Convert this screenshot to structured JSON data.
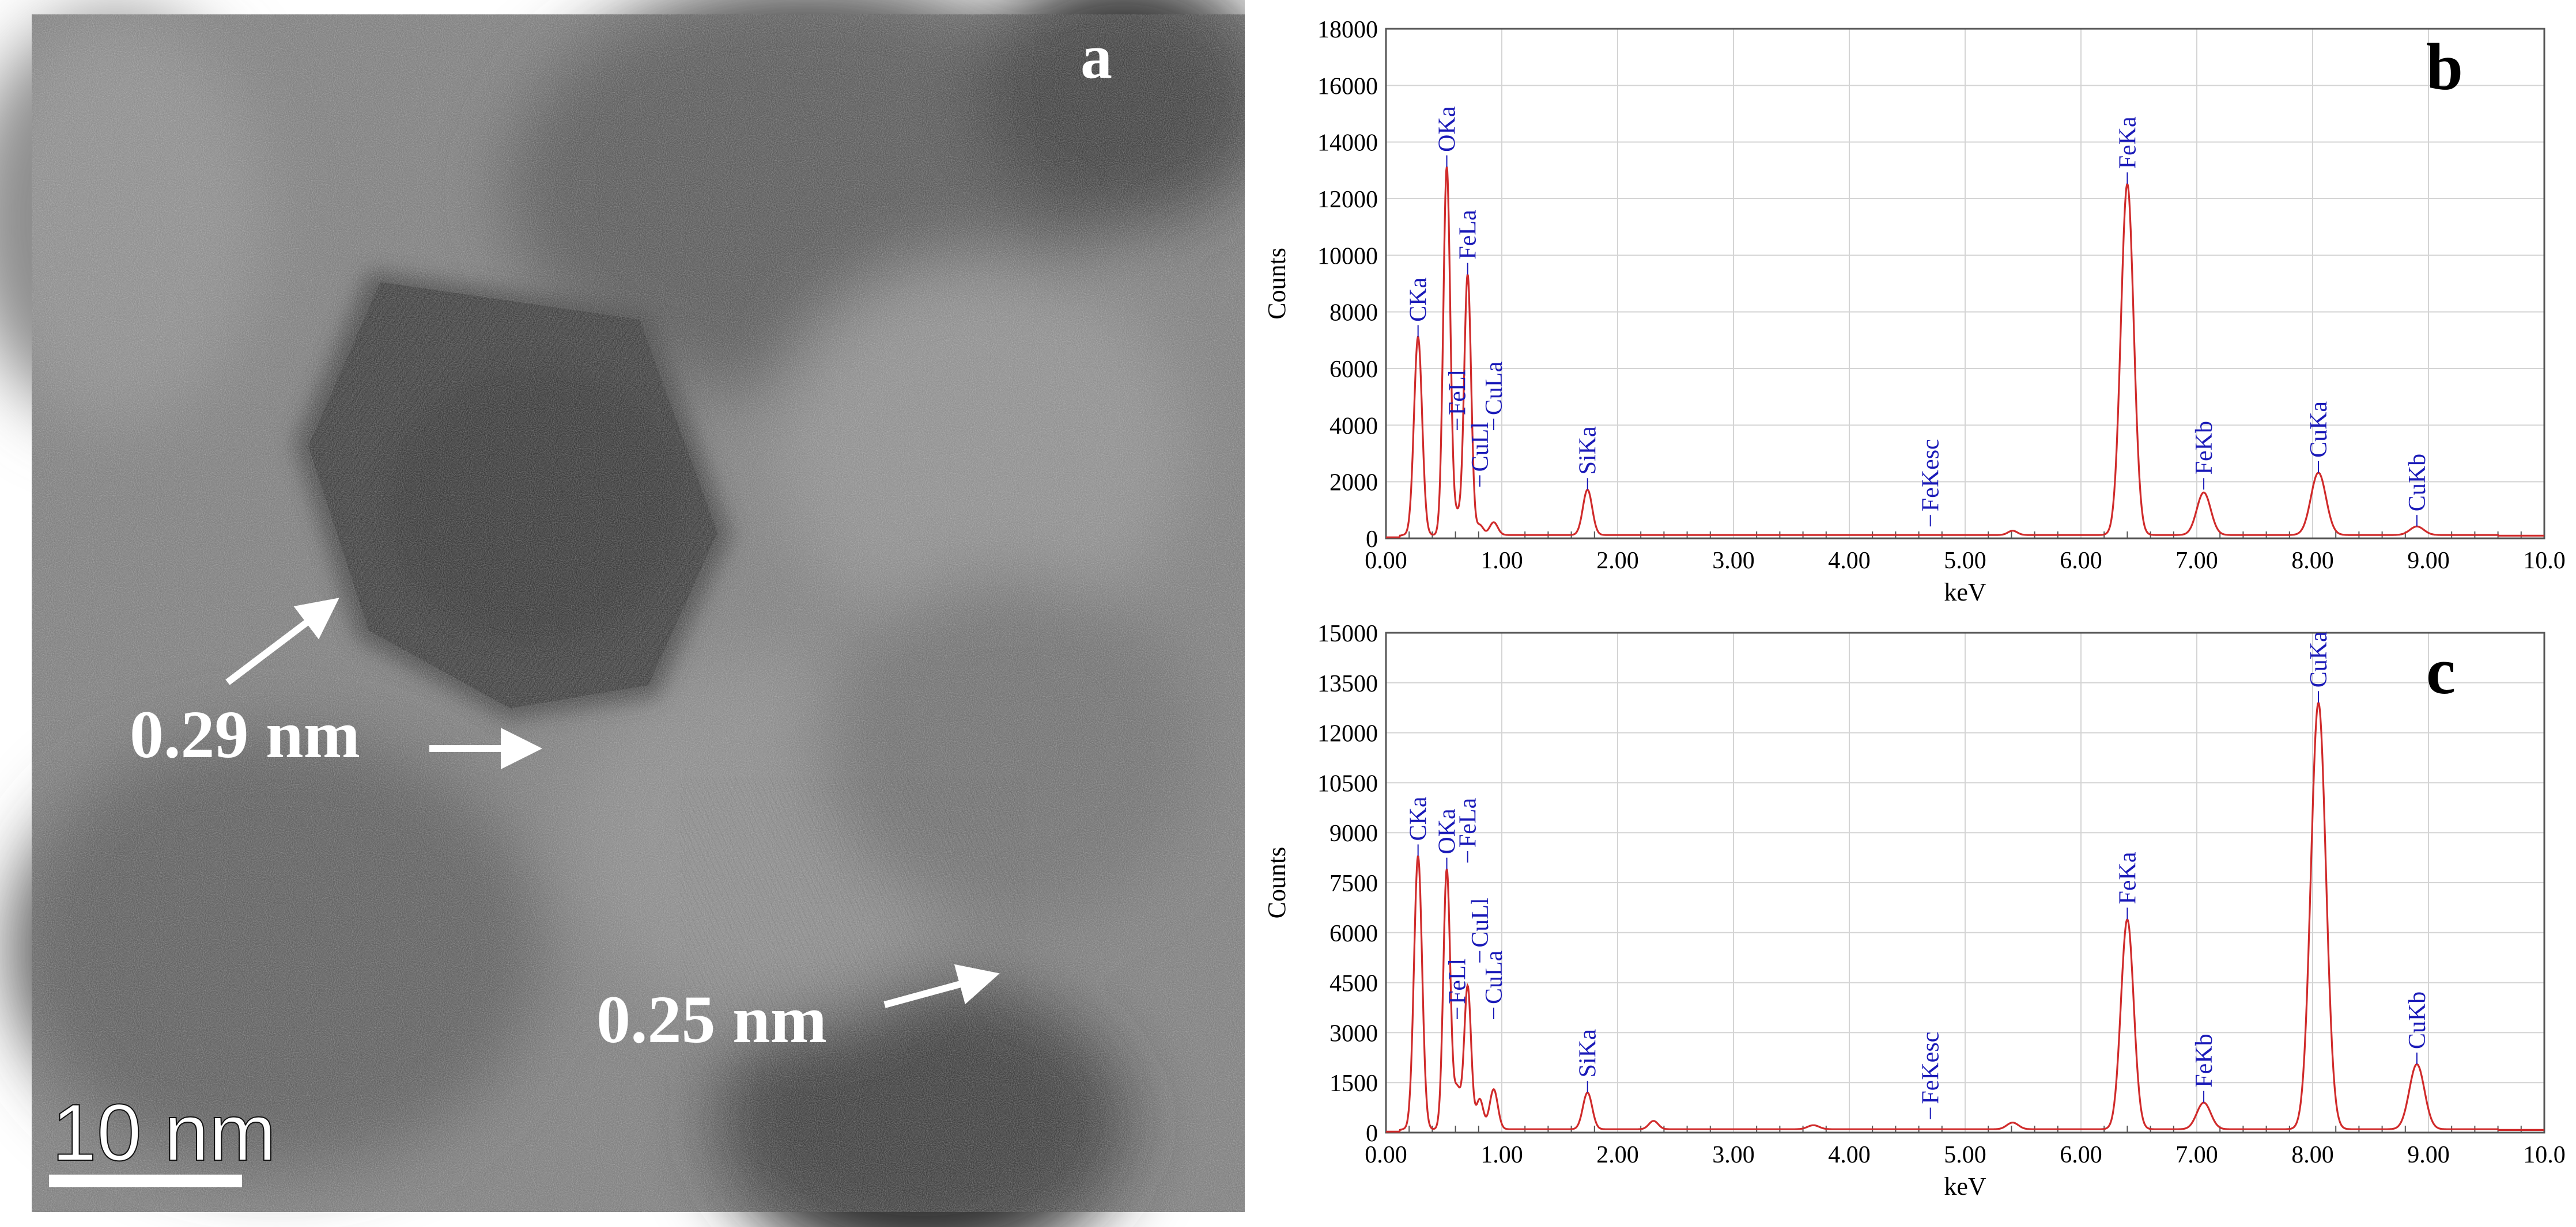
{
  "figure": {
    "panel_a": {
      "label": "a",
      "annotations": [
        "0.29 nm",
        "0.25 nm"
      ],
      "scale_bar": {
        "label": "10 nm"
      }
    }
  },
  "chart_data": [
    {
      "panel_label": "b",
      "type": "line",
      "title": "",
      "xlabel": "keV",
      "ylabel": "Counts",
      "xlim": [
        0,
        10
      ],
      "ylim": [
        0,
        18000
      ],
      "x_ticks": [
        0,
        1,
        2,
        3,
        4,
        5,
        6,
        7,
        8,
        9,
        10
      ],
      "x_tick_labels": [
        "0.00",
        "1.00",
        "2.00",
        "3.00",
        "4.00",
        "5.00",
        "6.00",
        "7.00",
        "8.00",
        "9.00",
        "10.0"
      ],
      "y_ticks": [
        0,
        2000,
        4000,
        6000,
        8000,
        10000,
        12000,
        14000,
        16000,
        18000
      ],
      "grid": true,
      "line_color": "#d02b2b",
      "label_color": "#1a1ab8",
      "baseline": 120,
      "peaks": [
        {
          "x": 0.277,
          "y": 7000,
          "w": 0.035
        },
        {
          "x": 0.525,
          "y": 13000,
          "w": 0.03
        },
        {
          "x": 0.615,
          "y": 700,
          "w": 0.03
        },
        {
          "x": 0.705,
          "y": 9200,
          "w": 0.03
        },
        {
          "x": 0.81,
          "y": 350,
          "w": 0.03
        },
        {
          "x": 0.93,
          "y": 450,
          "w": 0.035
        },
        {
          "x": 1.74,
          "y": 1600,
          "w": 0.04
        },
        {
          "x": 5.41,
          "y": 150,
          "w": 0.04
        },
        {
          "x": 6.4,
          "y": 12400,
          "w": 0.055
        },
        {
          "x": 7.06,
          "y": 1500,
          "w": 0.06
        },
        {
          "x": 8.05,
          "y": 2200,
          "w": 0.065
        },
        {
          "x": 8.9,
          "y": 300,
          "w": 0.06
        }
      ],
      "peak_labels": [
        {
          "text": "CKa",
          "x": 0.277,
          "y": 7000
        },
        {
          "text": "OKa",
          "x": 0.525,
          "y": 13000
        },
        {
          "text": "FeLl",
          "x": 0.615,
          "y": 3700
        },
        {
          "text": "FeLa",
          "x": 0.705,
          "y": 9200
        },
        {
          "text": "CuLl",
          "x": 0.81,
          "y": 1700
        },
        {
          "text": "CuLa",
          "x": 0.93,
          "y": 3700
        },
        {
          "text": "SiKa",
          "x": 1.74,
          "y": 1600
        },
        {
          "text": "FeKesc",
          "x": 4.7,
          "y": 300
        },
        {
          "text": "FeKa",
          "x": 6.4,
          "y": 12400
        },
        {
          "text": "FeKb",
          "x": 7.06,
          "y": 1600
        },
        {
          "text": "CuKa",
          "x": 8.05,
          "y": 2200
        },
        {
          "text": "CuKb",
          "x": 8.9,
          "y": 300
        }
      ]
    },
    {
      "panel_label": "c",
      "type": "line",
      "title": "",
      "xlabel": "keV",
      "ylabel": "Counts",
      "xlim": [
        0,
        10
      ],
      "ylim": [
        0,
        15000
      ],
      "x_ticks": [
        0,
        1,
        2,
        3,
        4,
        5,
        6,
        7,
        8,
        9,
        10
      ],
      "x_tick_labels": [
        "0.00",
        "1.00",
        "2.00",
        "3.00",
        "4.00",
        "5.00",
        "6.00",
        "7.00",
        "8.00",
        "9.00",
        "10.0"
      ],
      "y_ticks": [
        0,
        1500,
        3000,
        4500,
        6000,
        7500,
        9000,
        10500,
        12000,
        13500,
        15000
      ],
      "grid": true,
      "line_color": "#d02b2b",
      "label_color": "#1a1ab8",
      "baseline": 100,
      "peaks": [
        {
          "x": 0.277,
          "y": 8200,
          "w": 0.035
        },
        {
          "x": 0.525,
          "y": 7800,
          "w": 0.03
        },
        {
          "x": 0.615,
          "y": 1200,
          "w": 0.03
        },
        {
          "x": 0.705,
          "y": 4300,
          "w": 0.03
        },
        {
          "x": 0.81,
          "y": 900,
          "w": 0.03
        },
        {
          "x": 0.93,
          "y": 1200,
          "w": 0.035
        },
        {
          "x": 1.74,
          "y": 1100,
          "w": 0.04
        },
        {
          "x": 2.31,
          "y": 250,
          "w": 0.04
        },
        {
          "x": 3.69,
          "y": 120,
          "w": 0.05
        },
        {
          "x": 5.41,
          "y": 200,
          "w": 0.05
        },
        {
          "x": 6.4,
          "y": 6300,
          "w": 0.055
        },
        {
          "x": 7.06,
          "y": 800,
          "w": 0.06
        },
        {
          "x": 8.05,
          "y": 12800,
          "w": 0.065
        },
        {
          "x": 8.9,
          "y": 1950,
          "w": 0.065
        }
      ],
      "peak_labels": [
        {
          "text": "CKa",
          "x": 0.277,
          "y": 8200
        },
        {
          "text": "OKa",
          "x": 0.525,
          "y": 7800
        },
        {
          "text": "FeLl",
          "x": 0.615,
          "y": 3300
        },
        {
          "text": "FeLa",
          "x": 0.705,
          "y": 8000
        },
        {
          "text": "CuLl",
          "x": 0.81,
          "y": 5000
        },
        {
          "text": "CuLa",
          "x": 0.93,
          "y": 3300
        },
        {
          "text": "SiKa",
          "x": 1.74,
          "y": 1100
        },
        {
          "text": "FeKesc",
          "x": 4.7,
          "y": 300
        },
        {
          "text": "FeKa",
          "x": 6.4,
          "y": 6300
        },
        {
          "text": "FeKb",
          "x": 7.06,
          "y": 800
        },
        {
          "text": "CuKa",
          "x": 8.05,
          "y": 12800
        },
        {
          "text": "CuKb",
          "x": 8.9,
          "y": 1950
        }
      ]
    }
  ]
}
